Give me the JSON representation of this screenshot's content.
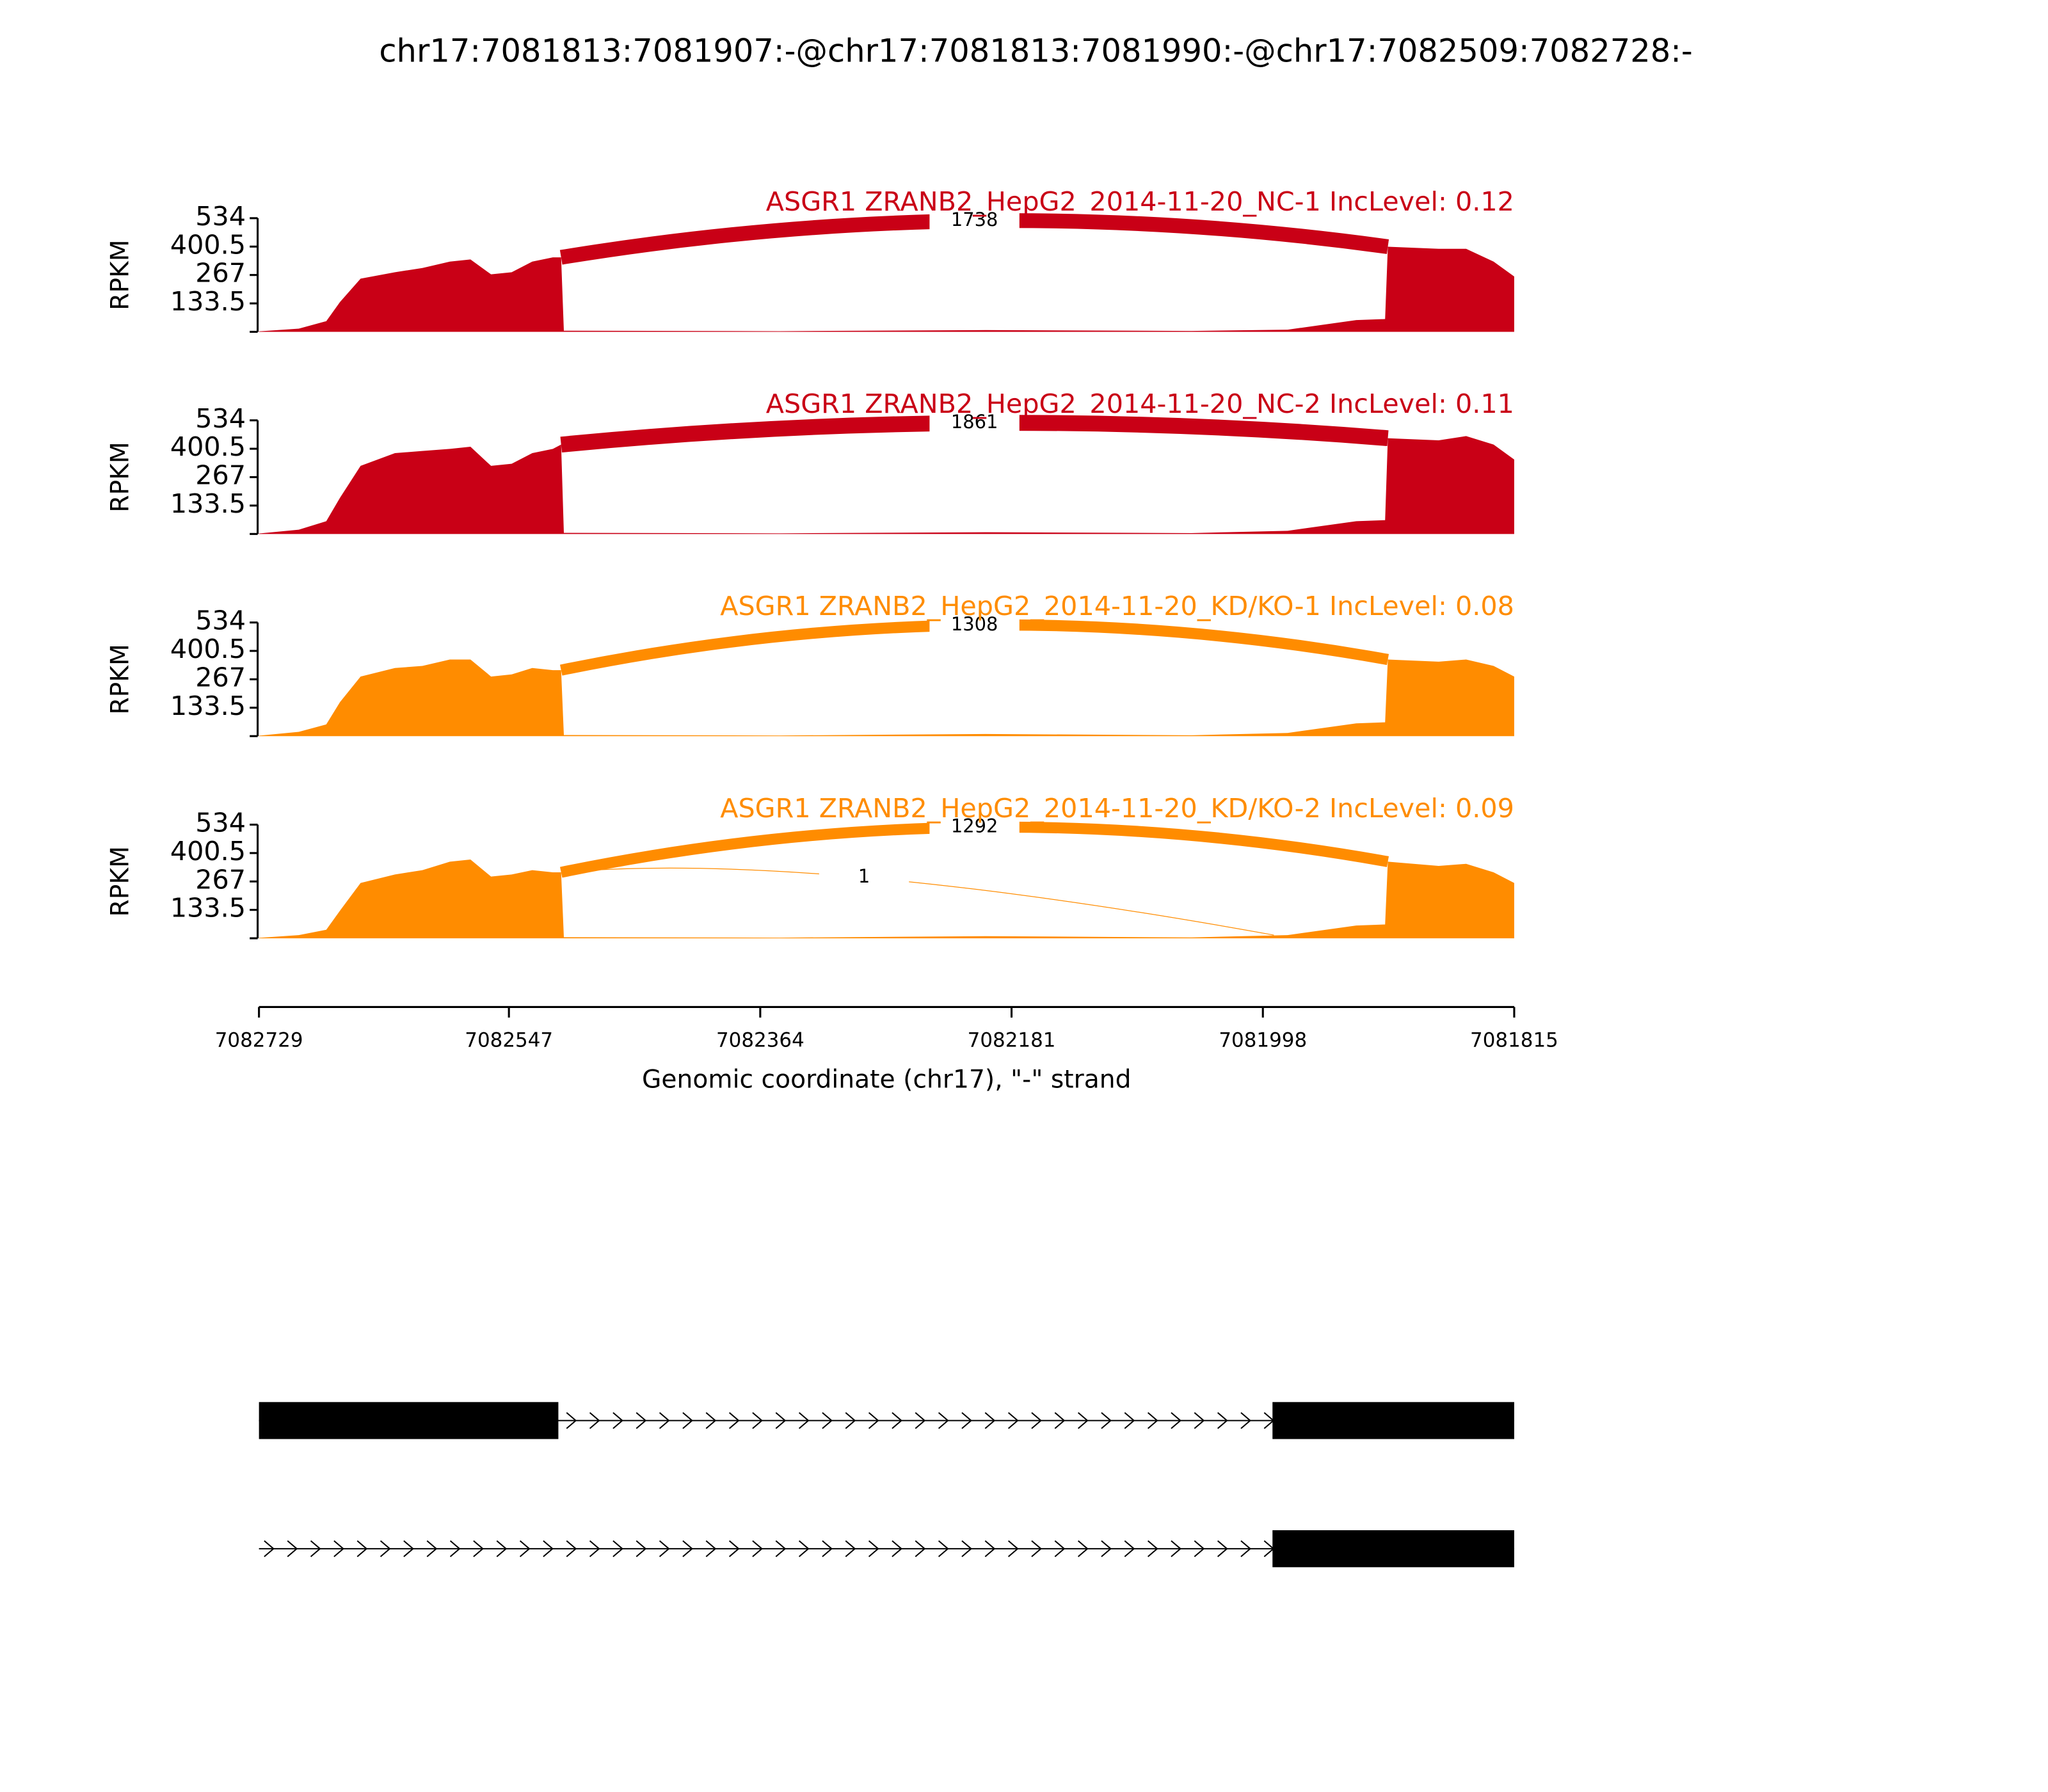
{
  "chart_data": {
    "type": "sashimi",
    "title": "chr17:7081813:7081907:-@chr17:7081813:7081990:-@chr17:7082509:7082728:-",
    "xlabel": "Genomic coordinate (chr17), \"-\" strand",
    "xlim": [
      7082729,
      7081815
    ],
    "xticks": [
      7082729,
      7082547,
      7082364,
      7082181,
      7081998,
      7081815
    ],
    "coverage_x": [
      7082729,
      7082700,
      7082680,
      7082670,
      7082655,
      7082630,
      7082610,
      7082590,
      7082575,
      7082560,
      7082545,
      7082530,
      7082515,
      7082509,
      7082507,
      7082350,
      7082200,
      7082050,
      7081980,
      7081930,
      7081909,
      7081907,
      7081870,
      7081850,
      7081830,
      7081815
    ],
    "panels": [
      {
        "title": "ASGR1 ZRANB2_HepG2_2014-11-20_NC-1 IncLevel: 0.12",
        "color": "#c90016",
        "ylabel": "RPKM",
        "ylim": [
          0,
          534
        ],
        "yticks": [
          133.5,
          267,
          400.5,
          534
        ],
        "coverage": [
          2,
          15,
          50,
          140,
          250,
          280,
          300,
          330,
          340,
          270,
          280,
          330,
          350,
          350,
          5,
          3,
          8,
          4,
          10,
          55,
          60,
          400,
          390,
          390,
          330,
          260
        ],
        "junctions": [
          {
            "start": 7082509,
            "end": 7081907,
            "count": 1738
          }
        ]
      },
      {
        "title": "ASGR1 ZRANB2_HepG2_2014-11-20_NC-2 IncLevel: 0.11",
        "color": "#c90016",
        "ylabel": "RPKM",
        "ylim": [
          0,
          534
        ],
        "yticks": [
          133.5,
          267,
          400.5,
          534
        ],
        "coverage": [
          2,
          20,
          60,
          170,
          320,
          380,
          390,
          400,
          410,
          320,
          330,
          380,
          400,
          420,
          5,
          3,
          8,
          4,
          15,
          60,
          65,
          450,
          440,
          460,
          420,
          350
        ],
        "junctions": [
          {
            "start": 7082509,
            "end": 7081907,
            "count": 1861
          }
        ]
      },
      {
        "title": "ASGR1 ZRANB2_HepG2_2014-11-20_KD/KO-1 IncLevel: 0.08",
        "color": "#ff8c00",
        "ylabel": "RPKM",
        "ylim": [
          0,
          534
        ],
        "yticks": [
          133.5,
          267,
          400.5,
          534
        ],
        "coverage": [
          2,
          20,
          55,
          160,
          280,
          320,
          330,
          360,
          360,
          280,
          290,
          320,
          310,
          310,
          5,
          3,
          10,
          4,
          15,
          60,
          65,
          360,
          350,
          360,
          330,
          280
        ],
        "junctions": [
          {
            "start": 7082509,
            "end": 7081907,
            "count": 1308
          }
        ]
      },
      {
        "title": "ASGR1 ZRANB2_HepG2_2014-11-20_KD/KO-2 IncLevel: 0.09",
        "color": "#ff8c00",
        "ylabel": "RPKM",
        "ylim": [
          0,
          534
        ],
        "yticks": [
          133.5,
          267,
          400.5,
          534
        ],
        "coverage": [
          2,
          15,
          40,
          130,
          260,
          300,
          320,
          360,
          370,
          290,
          300,
          320,
          310,
          310,
          5,
          3,
          10,
          4,
          15,
          60,
          65,
          360,
          340,
          350,
          310,
          260
        ],
        "junctions": [
          {
            "start": 7082509,
            "end": 7081907,
            "count": 1292
          },
          {
            "start": 7082509,
            "end": 7081990,
            "count": 1
          }
        ]
      }
    ],
    "transcripts": [
      {
        "span": [
          7082729,
          7081815
        ],
        "exons": [
          [
            7082729,
            7082511
          ],
          [
            7081991,
            7081815
          ]
        ]
      },
      {
        "span": [
          7082729,
          7081815
        ],
        "exons": [
          [
            7081991,
            7081815
          ]
        ]
      }
    ]
  }
}
